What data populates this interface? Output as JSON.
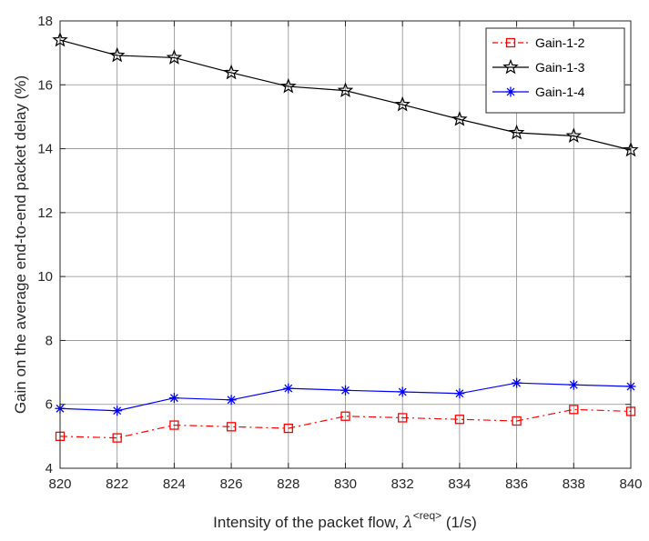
{
  "chart_data": {
    "type": "line",
    "title": "",
    "xlabel": "Intensity of the packet flow, ",
    "xlabel_symbol": "λ",
    "xlabel_superscript": "<req>",
    "xlabel_unit": " (1/s)",
    "ylabel": "Gain on the average end-to-end packet delay (%)",
    "x": [
      820,
      822,
      824,
      826,
      828,
      830,
      832,
      834,
      836,
      838,
      840
    ],
    "xlim": [
      820,
      840
    ],
    "ylim": [
      4,
      18
    ],
    "xticks": [
      "820",
      "822",
      "824",
      "826",
      "828",
      "830",
      "832",
      "834",
      "836",
      "838",
      "840"
    ],
    "yticks": [
      "4",
      "6",
      "8",
      "10",
      "12",
      "14",
      "16",
      "18"
    ],
    "grid": true,
    "legend_position": "top-right",
    "series": [
      {
        "name": "Gain-1-2",
        "color": "#ff0000",
        "line_style": "dash-dot",
        "marker": "square",
        "values": [
          5.0,
          4.95,
          5.35,
          5.3,
          5.25,
          5.63,
          5.58,
          5.53,
          5.48,
          5.84,
          5.78
        ]
      },
      {
        "name": "Gain-1-3",
        "color": "#000000",
        "line_style": "solid",
        "marker": "star",
        "values": [
          17.4,
          16.92,
          16.85,
          16.38,
          15.95,
          15.82,
          15.38,
          14.92,
          14.5,
          14.4,
          13.96
        ]
      },
      {
        "name": "Gain-1-4",
        "color": "#0000ff",
        "line_style": "solid",
        "marker": "asterisk",
        "values": [
          5.87,
          5.8,
          6.2,
          6.14,
          6.5,
          6.44,
          6.39,
          6.34,
          6.67,
          6.61,
          6.56
        ]
      }
    ]
  }
}
